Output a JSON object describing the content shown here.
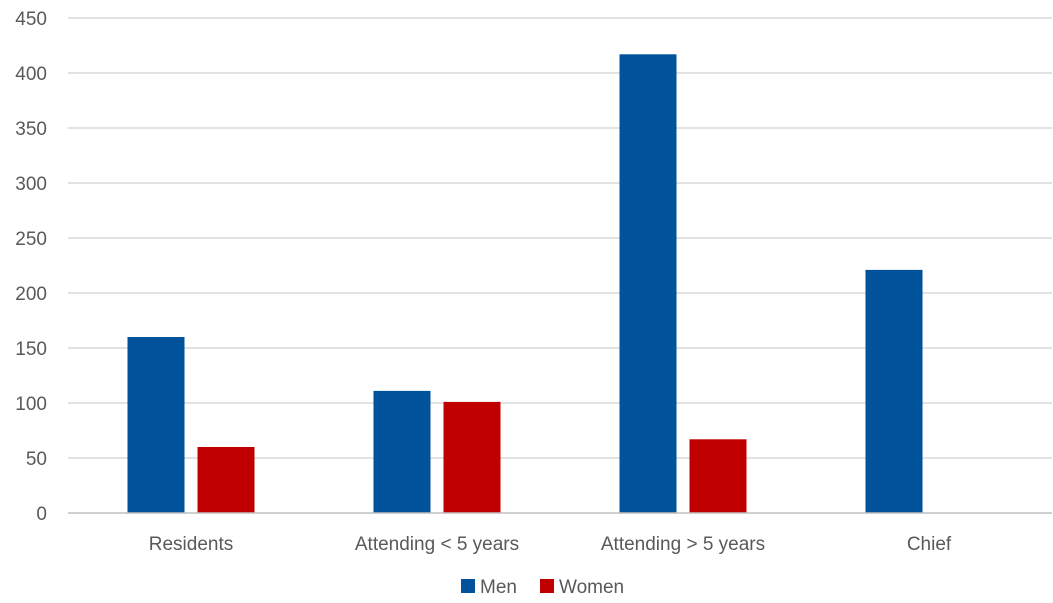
{
  "chart_data": {
    "type": "bar",
    "categories": [
      "Residents",
      "Attending < 5 years",
      "Attending > 5 years",
      "Chief"
    ],
    "series": [
      {
        "name": "Men",
        "color": "#00529B",
        "values": [
          160,
          111,
          417,
          221
        ]
      },
      {
        "name": "Women",
        "color": "#C00000",
        "values": [
          60,
          101,
          67,
          0
        ]
      }
    ],
    "ylim": [
      0,
      450
    ],
    "yticks": [
      0,
      50,
      100,
      150,
      200,
      250,
      300,
      350,
      400,
      450
    ],
    "grid": true,
    "legend": "bottom-center",
    "title": "",
    "xlabel": "",
    "ylabel": ""
  }
}
